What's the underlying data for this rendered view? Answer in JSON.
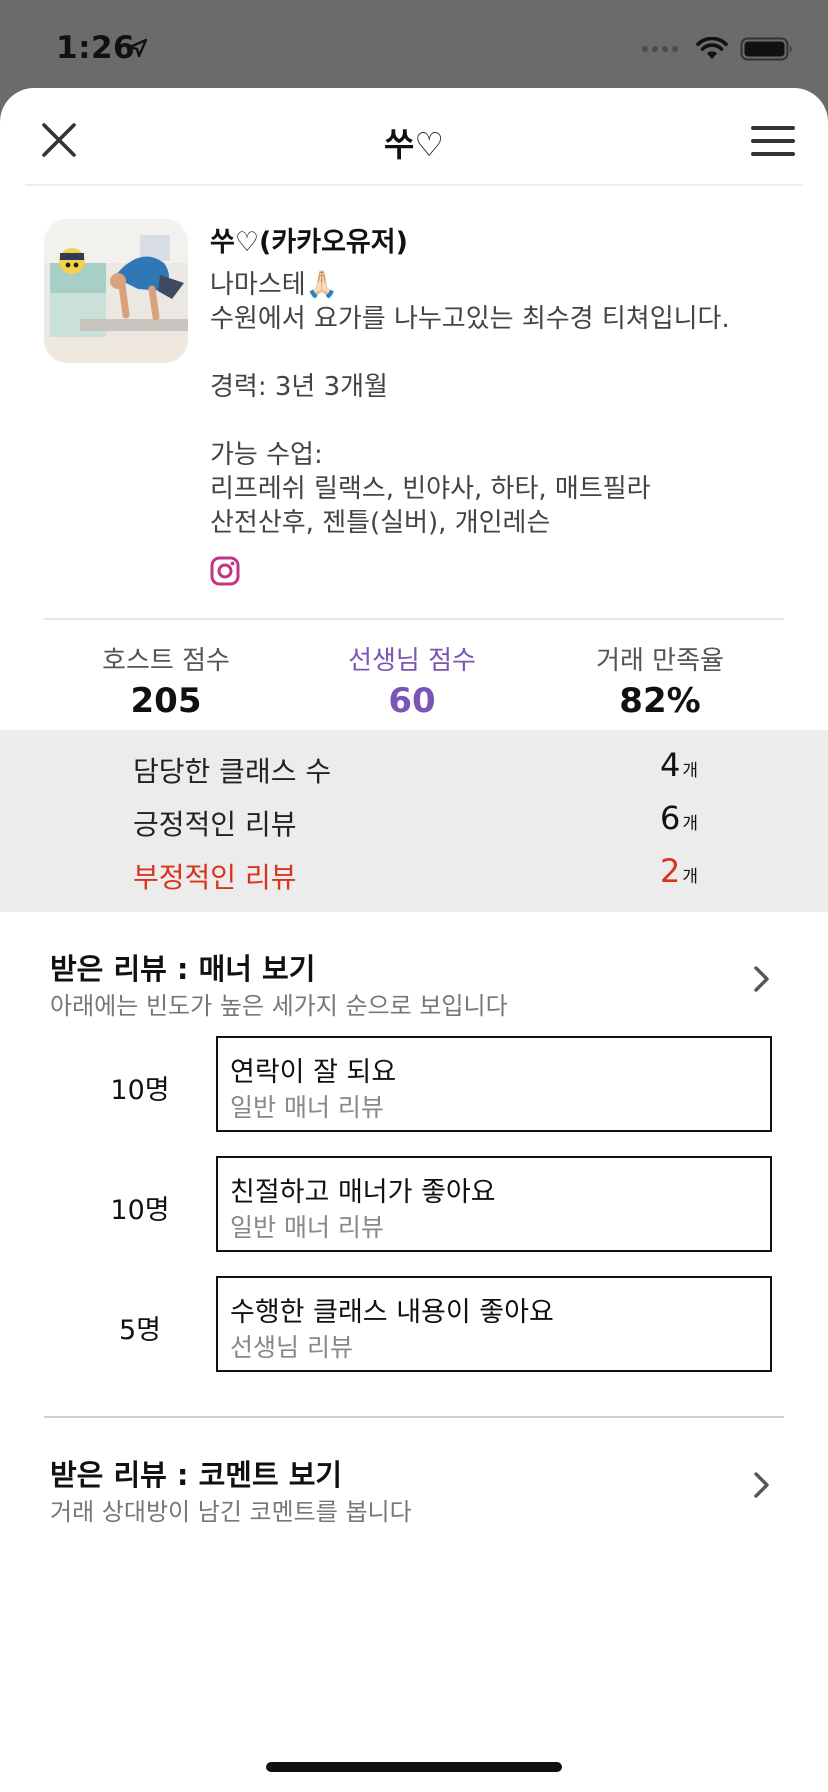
{
  "status_bar": {
    "time": "1:26"
  },
  "nav": {
    "title": "쑤♡"
  },
  "profile": {
    "name": "쑤♡(카카오유저)",
    "bio": "나마스테🙏🏻\n수원에서 요가를 나누고있는 최수경 티쳐입니다.\n\n경력: 3년 3개월\n\n가능 수업:\n리프레쉬 릴랙스, 빈야사, 하타, 매트필라\n산전산후, 젠틀(실버), 개인레슨"
  },
  "scores": {
    "host": {
      "label": "호스트 점수",
      "value": "205"
    },
    "teacher": {
      "label": "선생님 점수",
      "value": "60"
    },
    "rate": {
      "label": "거래 만족율",
      "value": "82%"
    }
  },
  "stats": [
    {
      "label": "담당한 클래스 수",
      "value": "4",
      "unit": "개"
    },
    {
      "label": "긍정적인 리뷰",
      "value": "6",
      "unit": "개"
    },
    {
      "label": "부정적인 리뷰",
      "value": "2",
      "unit": "개"
    }
  ],
  "manner_section": {
    "title": "받은 리뷰 : 매너 보기",
    "subtitle": "아래에는 빈도가 높은 세가지 순으로 보입니다",
    "reviews": [
      {
        "count": "10명",
        "text": "연락이 잘 되요",
        "type": "일반 매너 리뷰"
      },
      {
        "count": "10명",
        "text": "친절하고 매너가 좋아요",
        "type": "일반 매너 리뷰"
      },
      {
        "count": "5명",
        "text": "수행한 클래스 내용이 좋아요",
        "type": "선생님 리뷰"
      }
    ]
  },
  "comment_section": {
    "title": "받은 리뷰 : 코멘트 보기",
    "subtitle": "거래 상대방이 남긴 코멘트를 봅니다"
  },
  "colors": {
    "accent": "#7a55b8",
    "negative": "#d9331f",
    "stats_bg": "#ececec",
    "instagram": "#c13584"
  },
  "icons": [
    "location-arrow-icon",
    "wifi-icon",
    "battery-icon",
    "close-icon",
    "menu-icon",
    "instagram-icon",
    "chevron-right-icon"
  ]
}
